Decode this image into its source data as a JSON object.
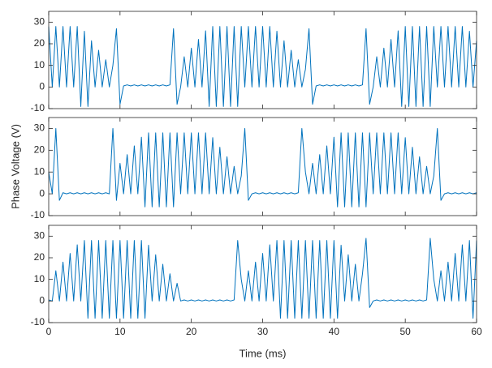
{
  "chart_data": [
    {
      "type": "line",
      "color": "#0072bd",
      "xlim": [
        0,
        60
      ],
      "ylim": [
        -10,
        35
      ],
      "xticks": [
        0,
        10,
        20,
        30,
        40,
        50,
        60
      ],
      "yticks": [
        -10,
        0,
        10,
        20,
        30
      ],
      "x": [
        0,
        0.5,
        1,
        1.5,
        2,
        2.5,
        3,
        3.5,
        4,
        4.5,
        5,
        5.5,
        6,
        6.5,
        7,
        7.5,
        8,
        8.5,
        9,
        9.5,
        10,
        10.5,
        11,
        11.5,
        12,
        12.5,
        13,
        13.5,
        14,
        14.5,
        15,
        15.5,
        16,
        16.5,
        17,
        17.5,
        18,
        18.5,
        19,
        19.5,
        20,
        20.5,
        21,
        21.5,
        22,
        22.5,
        23,
        23.5,
        24,
        24.5,
        25,
        25.5,
        26,
        26.5,
        27,
        27.5,
        28,
        28.5,
        29,
        29.5,
        30,
        30.5,
        31,
        31.5,
        32,
        32.5,
        33,
        33.5,
        34,
        34.5,
        35,
        35.5,
        36,
        36.5,
        37,
        37.5,
        38,
        38.5,
        39,
        39.5,
        40,
        40.5,
        41,
        41.5,
        42,
        42.5,
        43,
        43.5,
        44,
        44.5,
        45,
        45.5,
        46,
        46.5,
        47,
        47.5,
        48,
        48.5,
        49,
        49.5,
        50,
        50.5,
        51,
        51.5,
        52,
        52.5,
        53,
        53.5,
        54,
        54.5,
        55,
        55.5,
        56,
        56.5,
        57,
        57.5,
        58,
        58.5,
        59,
        59.5,
        60
      ],
      "values": [
        28,
        0,
        28,
        0,
        28,
        0,
        28,
        0,
        28,
        -9,
        25.8,
        -9,
        21.4,
        0,
        17,
        0,
        12.6,
        0,
        10,
        27,
        -8,
        0.5,
        1,
        0.5,
        1,
        0.5,
        1,
        0.5,
        1,
        0.5,
        1,
        0.5,
        1,
        0.5,
        1,
        27,
        -8,
        0,
        14,
        0,
        18,
        0,
        22,
        0,
        26,
        -9,
        28,
        -9,
        28,
        -9,
        28,
        -9,
        28,
        -9,
        28,
        0,
        28,
        0,
        28,
        0,
        28,
        0,
        28,
        0,
        25.8,
        0,
        21.4,
        0,
        17,
        0,
        12.6,
        0,
        8.2,
        27,
        -8,
        0.5,
        1,
        0.5,
        1,
        0.5,
        1,
        0.5,
        1,
        0.5,
        1,
        0.5,
        1,
        0.5,
        1,
        27,
        -8,
        0,
        14,
        0,
        18,
        0,
        22,
        0,
        26,
        -9,
        28,
        -9,
        28,
        -9,
        28,
        -9,
        28,
        -9,
        28,
        0,
        28,
        0,
        28,
        0,
        28,
        0,
        28,
        0,
        25.8,
        0,
        21.4
      ]
    },
    {
      "type": "line",
      "color": "#0072bd",
      "xlim": [
        0,
        60
      ],
      "ylim": [
        -10,
        35
      ],
      "xticks": [
        0,
        10,
        20,
        30,
        40,
        50,
        60
      ],
      "yticks": [
        -10,
        0,
        10,
        20,
        30
      ],
      "ylabel": "Phase Voltage (V)",
      "x": [
        0,
        0.5,
        1,
        1.5,
        2,
        2.5,
        3,
        3.5,
        4,
        4.5,
        5,
        5.5,
        6,
        6.5,
        7,
        7.5,
        8,
        8.5,
        9,
        9.5,
        10,
        10.5,
        11,
        11.5,
        12,
        12.5,
        13,
        13.5,
        14,
        14.5,
        15,
        15.5,
        16,
        16.5,
        17,
        17.5,
        18,
        18.5,
        19,
        19.5,
        20,
        20.5,
        21,
        21.5,
        22,
        22.5,
        23,
        23.5,
        24,
        24.5,
        25,
        25.5,
        26,
        26.5,
        27,
        27.5,
        28,
        28.5,
        29,
        29.5,
        30,
        30.5,
        31,
        31.5,
        32,
        32.5,
        33,
        33.5,
        34,
        34.5,
        35,
        35.5,
        36,
        36.5,
        37,
        37.5,
        38,
        38.5,
        39,
        39.5,
        40,
        40.5,
        41,
        41.5,
        42,
        42.5,
        43,
        43.5,
        44,
        44.5,
        45,
        45.5,
        46,
        46.5,
        47,
        47.5,
        48,
        48.5,
        49,
        49.5,
        50,
        50.5,
        51,
        51.5,
        52,
        52.5,
        53,
        53.5,
        54,
        54.5,
        55,
        55.5,
        56,
        56.5,
        57,
        57.5,
        58,
        58.5,
        59,
        59.5,
        60
      ],
      "values": [
        10,
        0,
        30,
        -3,
        0.5,
        0,
        0.5,
        0,
        0.5,
        0,
        0.5,
        0,
        0.5,
        0,
        0.5,
        0,
        0.5,
        0,
        30,
        -3,
        14,
        0,
        18,
        0,
        22,
        0,
        26,
        -6,
        28,
        -6,
        28,
        -6,
        28,
        -6,
        28,
        -6,
        28,
        0,
        28,
        0,
        28,
        0,
        28,
        0,
        28,
        0,
        25.8,
        0,
        21.4,
        0,
        17,
        0,
        12.6,
        0,
        8.2,
        30,
        -3,
        0,
        0.5,
        0,
        0.5,
        0,
        0.5,
        0,
        0.5,
        0,
        0.5,
        0,
        0.5,
        0,
        0.5,
        30,
        10,
        0,
        14,
        0,
        18,
        0,
        22,
        0,
        26,
        -6,
        28,
        -6,
        28,
        -6,
        28,
        -6,
        28,
        -6,
        28,
        0,
        28,
        0,
        28,
        0,
        28,
        0,
        28,
        0,
        25.8,
        0,
        21.4,
        0,
        17,
        0,
        12.6,
        0,
        8.2,
        30,
        -3,
        0,
        0.5,
        0,
        0.5,
        0,
        0.5,
        0,
        0.5,
        0,
        0.5
      ]
    },
    {
      "type": "line",
      "color": "#0072bd",
      "xlim": [
        0,
        60
      ],
      "ylim": [
        -10,
        35
      ],
      "xticks": [
        0,
        10,
        20,
        30,
        40,
        50,
        60
      ],
      "yticks": [
        -10,
        0,
        10,
        20,
        30
      ],
      "xlabel": "Time (ms)",
      "x": [
        0,
        0.5,
        1,
        1.5,
        2,
        2.5,
        3,
        3.5,
        4,
        4.5,
        5,
        5.5,
        6,
        6.5,
        7,
        7.5,
        8,
        8.5,
        9,
        9.5,
        10,
        10.5,
        11,
        11.5,
        12,
        12.5,
        13,
        13.5,
        14,
        14.5,
        15,
        15.5,
        16,
        16.5,
        17,
        17.5,
        18,
        18.5,
        19,
        19.5,
        20,
        20.5,
        21,
        21.5,
        22,
        22.5,
        23,
        23.5,
        24,
        24.5,
        25,
        25.5,
        26,
        26.5,
        27,
        27.5,
        28,
        28.5,
        29,
        29.5,
        30,
        30.5,
        31,
        31.5,
        32,
        32.5,
        33,
        33.5,
        34,
        34.5,
        35,
        35.5,
        36,
        36.5,
        37,
        37.5,
        38,
        38.5,
        39,
        39.5,
        40,
        40.5,
        41,
        41.5,
        42,
        42.5,
        43,
        43.5,
        44,
        44.5,
        45,
        45.5,
        46,
        46.5,
        47,
        47.5,
        48,
        48.5,
        49,
        49.5,
        50,
        50.5,
        51,
        51.5,
        52,
        52.5,
        53,
        53.5,
        54,
        54.5,
        55,
        55.5,
        56,
        56.5,
        57,
        57.5,
        58,
        58.5,
        59,
        59.5,
        60
      ],
      "values": [
        0.5,
        0,
        14,
        0,
        18,
        0,
        22,
        0,
        26,
        0,
        28,
        -8,
        28,
        -8,
        28,
        -8,
        28,
        -8,
        28,
        -8,
        28,
        -8,
        28,
        -8,
        28,
        -8,
        28,
        -8,
        25.8,
        0,
        21.4,
        0,
        17,
        0,
        12.6,
        0,
        8.2,
        0,
        0.5,
        0,
        0.5,
        0,
        0.5,
        0,
        0.5,
        0,
        0.5,
        0,
        0.5,
        0,
        0.5,
        0,
        0.5,
        28,
        10,
        0,
        14,
        0,
        18,
        0,
        22,
        0,
        26,
        0,
        28,
        -8,
        28,
        -8,
        28,
        -8,
        28,
        -8,
        28,
        -8,
        28,
        -8,
        28,
        -8,
        28,
        -8,
        28,
        -8,
        25.8,
        0,
        21.4,
        0,
        17,
        0,
        12.6,
        29,
        -3,
        0,
        0.5,
        0,
        0.5,
        0,
        0.5,
        0,
        0.5,
        0,
        0.5,
        0,
        0.5,
        0,
        0.5,
        0,
        0.5,
        29,
        10,
        0,
        14,
        0,
        18,
        0,
        22,
        0,
        26,
        0,
        28,
        -8,
        28
      ]
    }
  ]
}
